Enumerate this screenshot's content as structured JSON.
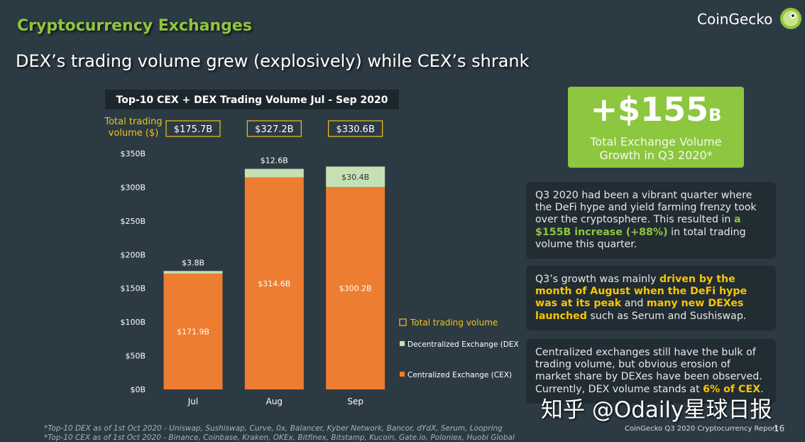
{
  "section": "Cryptocurrency Exchanges",
  "headline": "DEX’s trading volume grew (explosively) while CEX’s shrank",
  "brand": "CoinGecko",
  "stat": {
    "value": "+$155",
    "unit": "B",
    "caption": "Total Exchange Volume Growth in Q3 2020*"
  },
  "paragraphs": [
    [
      {
        "text": "Q3 2020 had been a vibrant quarter where the DeFi hype and yield farming frenzy took over the cryptosphere. This resulted in ",
        "style": "plain"
      },
      {
        "text": "a $155B increase (+88%)",
        "style": "green"
      },
      {
        "text": " in total trading volume this quarter.",
        "style": "plain"
      }
    ],
    [
      {
        "text": "Q3’s growth was mainly ",
        "style": "plain"
      },
      {
        "text": "driven by the month of August when the DeFi hype was at its peak",
        "style": "yellow"
      },
      {
        "text": " and ",
        "style": "plain"
      },
      {
        "text": "many new DEXes launched",
        "style": "yellow"
      },
      {
        "text": " such as Serum and Sushiswap.",
        "style": "plain"
      }
    ],
    [
      {
        "text": "Centralized exchanges still have the bulk of trading volume, but obvious erosion of market share by DEXes have been observed. Currently, DEX volume stands at ",
        "style": "plain"
      },
      {
        "text": "6% of CEX",
        "style": "yellow"
      },
      {
        "text": ".",
        "style": "plain"
      }
    ]
  ],
  "footnotes": [
    "*Top-10 DEX as of 1st Oct 2020 - Uniswap, Sushiswap, Curve, 0x, Balancer, Kyber Network, Bancor, dYdX, Serum, Loopring",
    "*Top-10 CEX as of 1st Oct 2020 - Binance, Coinbase, Kraken, OKEx, Bitfinex, Bitstamp, Kucoin, Gate.io, Poloniex, Huobi Global"
  ],
  "footer": "CoinGecko Q3 2020 Cryptocurrency Report",
  "page_number": "16",
  "watermark": "知乎 @Odaily星球日报",
  "chart_data": {
    "type": "bar",
    "stacked": true,
    "title": "Top-10 CEX + DEX Trading Volume Jul - Sep 2020",
    "categories": [
      "Jul",
      "Aug",
      "Sep"
    ],
    "series": [
      {
        "name": "Centralized Exchange (CEX)",
        "color": "#ed7d31",
        "values": [
          171.9,
          314.6,
          300.2
        ],
        "value_labels": [
          "$171.9B",
          "$314.6B",
          "$300.2B"
        ]
      },
      {
        "name": "Decentralized Exchange (DEX)",
        "color": "#c5e0b4",
        "values": [
          3.8,
          12.6,
          30.4
        ],
        "value_labels": [
          "$3.8B",
          "$12.6B",
          "$30.4B"
        ]
      }
    ],
    "totals": {
      "name": "Total trading volume",
      "label": "Total trading volume ($)",
      "color": "#f0c419",
      "values": [
        175.7,
        327.2,
        330.6
      ],
      "value_labels": [
        "$175.7B",
        "$327.2B",
        "$330.6B"
      ]
    },
    "ylim": [
      0,
      350
    ],
    "yticks": [
      {
        "value": 0,
        "label": "$0B"
      },
      {
        "value": 50,
        "label": "$50B"
      },
      {
        "value": 100,
        "label": "$100B"
      },
      {
        "value": 150,
        "label": "$150B"
      },
      {
        "value": 200,
        "label": "$200B"
      },
      {
        "value": 250,
        "label": "$250B"
      },
      {
        "value": 300,
        "label": "$300B"
      },
      {
        "value": 350,
        "label": "$350B"
      }
    ],
    "grid": false,
    "legend": "right"
  }
}
